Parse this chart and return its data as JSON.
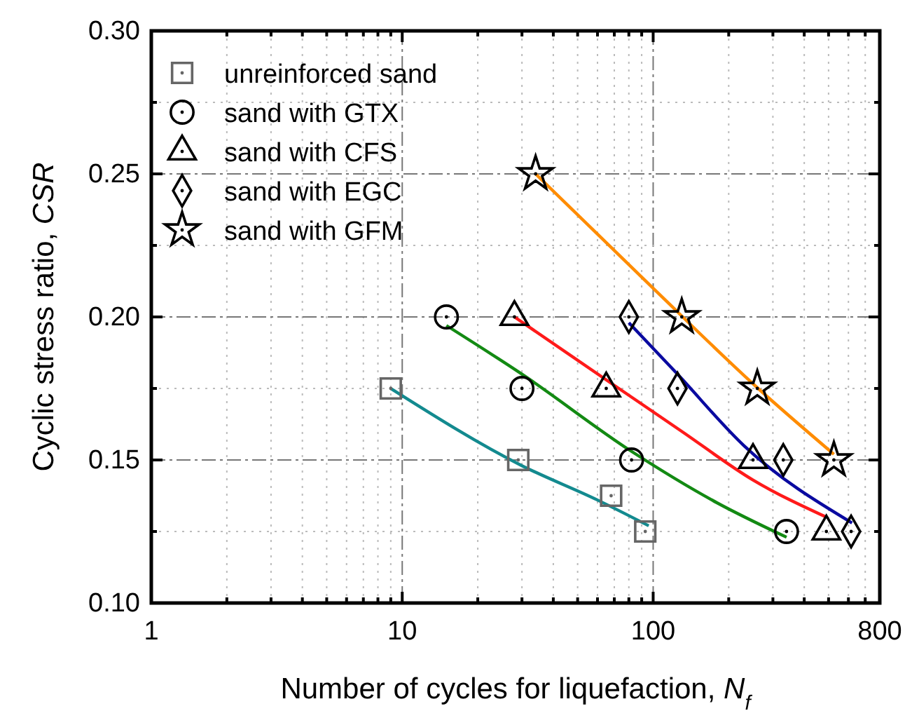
{
  "chart_data": {
    "type": "scatter",
    "xlabel": "Number of cycles for liquefaction, N$_{f}$",
    "ylabel": "Cyclic stress ratio, CSR",
    "log": "x",
    "xlim": [
      1,
      800
    ],
    "ylim": [
      0.1,
      0.3
    ],
    "xticks": [
      1,
      {
        "value": 2,
        "label": null
      },
      {
        "value": 3,
        "label": null
      },
      {
        "value": 4,
        "label": null
      },
      {
        "value": 5,
        "label": null
      },
      {
        "value": 6,
        "label": null
      },
      {
        "value": 7,
        "label": null
      },
      {
        "value": 8,
        "label": null
      },
      {
        "value": 9,
        "label": null
      },
      10,
      {
        "value": 20,
        "label": null
      },
      {
        "value": 30,
        "label": null
      },
      {
        "value": 40,
        "label": null
      },
      {
        "value": 50,
        "label": null
      },
      {
        "value": 60,
        "label": null
      },
      {
        "value": 70,
        "label": null
      },
      {
        "value": 80,
        "label": null
      },
      {
        "value": 90,
        "label": null
      },
      100,
      {
        "value": 200,
        "label": null
      },
      {
        "value": 300,
        "label": null
      },
      {
        "value": 400,
        "label": null
      },
      {
        "value": 500,
        "label": null
      },
      {
        "value": 600,
        "label": null
      },
      {
        "value": 700,
        "label": null
      },
      800
    ],
    "yticks": [
      {
        "value": 0.1,
        "label": "0.10"
      },
      {
        "value": 0.125,
        "label": null
      },
      0.15,
      {
        "value": 0.175,
        "label": null
      },
      {
        "value": 0.2,
        "label": "0.20"
      },
      {
        "value": 0.225,
        "label": null
      },
      0.25,
      {
        "value": 0.275,
        "label": null
      },
      {
        "value": 0.3,
        "label": "0.30"
      }
    ],
    "grid": true,
    "legend": "top left",
    "series": [
      {
        "name": "unreinforced sand",
        "color": "#666666",
        "marker": "square",
        "x": [
          9,
          29,
          68,
          93
        ],
        "values": [
          0.175,
          0.15,
          0.1375,
          0.125
        ]
      },
      {
        "name": "sand with GTX",
        "color": "#000000",
        "marker": "circle",
        "x": [
          15,
          30,
          82,
          340
        ],
        "values": [
          0.2,
          0.175,
          0.15,
          0.125
        ]
      },
      {
        "name": "sand with CFS",
        "color": "#000000",
        "marker": "triangle",
        "x": [
          28,
          65,
          250,
          490
        ],
        "values": [
          0.2,
          0.175,
          0.15,
          0.125
        ]
      },
      {
        "name": "sand with EGC",
        "color": "#000000",
        "marker": "diamond",
        "x": [
          80,
          125,
          330,
          615
        ],
        "values": [
          0.2,
          0.175,
          0.15,
          0.125
        ]
      },
      {
        "name": "sand with GFM",
        "color": "#000000",
        "marker": "star",
        "x": [
          34,
          130,
          260,
          525
        ],
        "values": [
          0.25,
          0.2,
          0.175,
          0.15
        ]
      },
      {
        "type": "line",
        "color": "#138a8f",
        "marker": "none",
        "x": [
          9,
          30,
          60,
          96
        ],
        "values": [
          0.175,
          0.148,
          0.136,
          0.127
        ]
      },
      {
        "type": "line",
        "color": "#138a13",
        "marker": "none",
        "x": [
          15,
          30,
          82,
          180,
          340
        ],
        "values": [
          0.197,
          0.18,
          0.153,
          0.135,
          0.123
        ]
      },
      {
        "type": "line",
        "color": "#ff1a1a",
        "marker": "none",
        "x": [
          28,
          65,
          130,
          250,
          490
        ],
        "values": [
          0.2,
          0.178,
          0.16,
          0.143,
          0.13
        ]
      },
      {
        "type": "line",
        "color": "#0a0aa0",
        "marker": "none",
        "x": [
          80,
          125,
          230,
          620
        ],
        "values": [
          0.198,
          0.18,
          0.155,
          0.128
        ]
      },
      {
        "type": "line",
        "color": "#ff8c00",
        "marker": "none",
        "x": [
          34,
          100,
          262,
          525
        ],
        "values": [
          0.25,
          0.21,
          0.175,
          0.152
        ]
      }
    ]
  }
}
